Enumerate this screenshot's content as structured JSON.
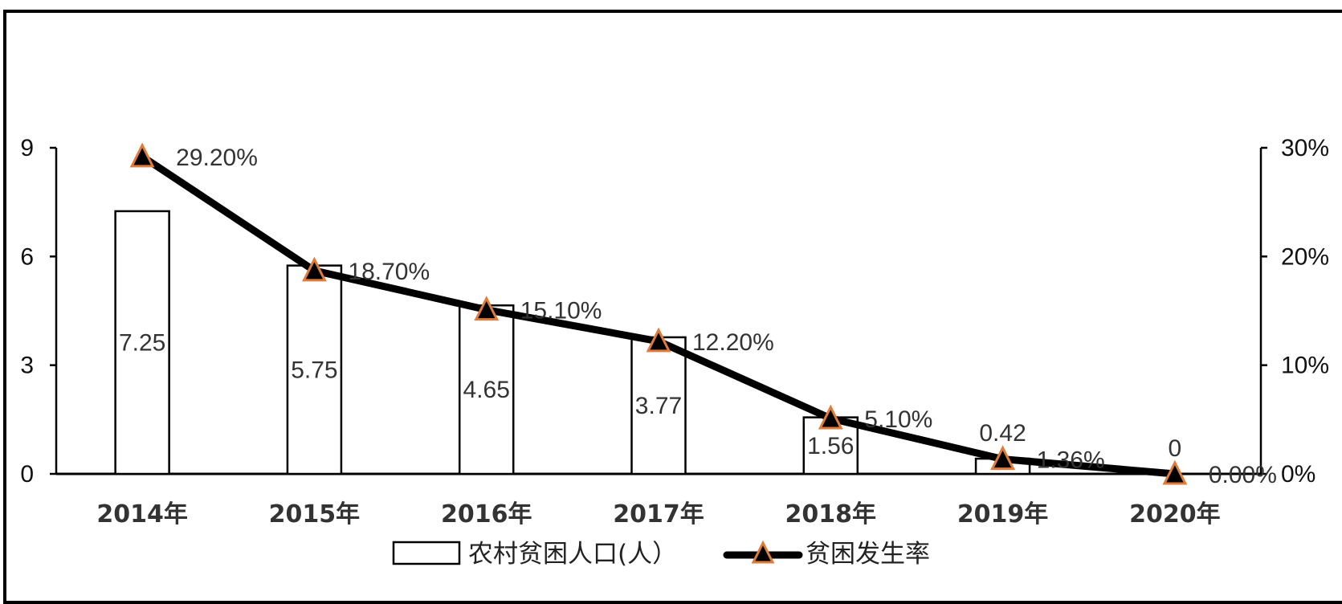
{
  "chart_data": {
    "type": "bar",
    "categories": [
      "2014年",
      "2015年",
      "2016年",
      "2017年",
      "2018年",
      "2019年",
      "2020年"
    ],
    "series": [
      {
        "name": "农村贫困人口(人）",
        "type": "bar",
        "axis": "left",
        "values": [
          7.25,
          5.75,
          4.65,
          3.77,
          1.56,
          0.42,
          0
        ],
        "labels": [
          "7.25",
          "5.75",
          "4.65",
          "3.77",
          "1.56",
          "0.42",
          "0"
        ]
      },
      {
        "name": "贫困发生率",
        "type": "line",
        "axis": "right",
        "values": [
          29.2,
          18.7,
          15.1,
          12.2,
          5.1,
          1.36,
          0.0
        ],
        "labels": [
          "29.20%",
          "18.70%",
          "15.10%",
          "12.20%",
          "5.10%",
          "1.36%",
          "0.00%"
        ]
      }
    ],
    "left_axis": {
      "min": 0,
      "max": 9,
      "ticks": [
        "0",
        "3",
        "6",
        "9"
      ],
      "tick_values": [
        0,
        3,
        6,
        9
      ]
    },
    "right_axis": {
      "min": 0,
      "max": 30,
      "ticks": [
        "0%",
        "10%",
        "20%",
        "30%"
      ],
      "tick_values": [
        0,
        10,
        20,
        30
      ]
    },
    "legend": {
      "position": "bottom"
    },
    "grid": false,
    "colors": {
      "bar_fill": "#ffffff",
      "bar_stroke": "#000000",
      "line": "#000000",
      "marker_fill": "#000000",
      "marker_stroke": "#e07b39"
    }
  }
}
